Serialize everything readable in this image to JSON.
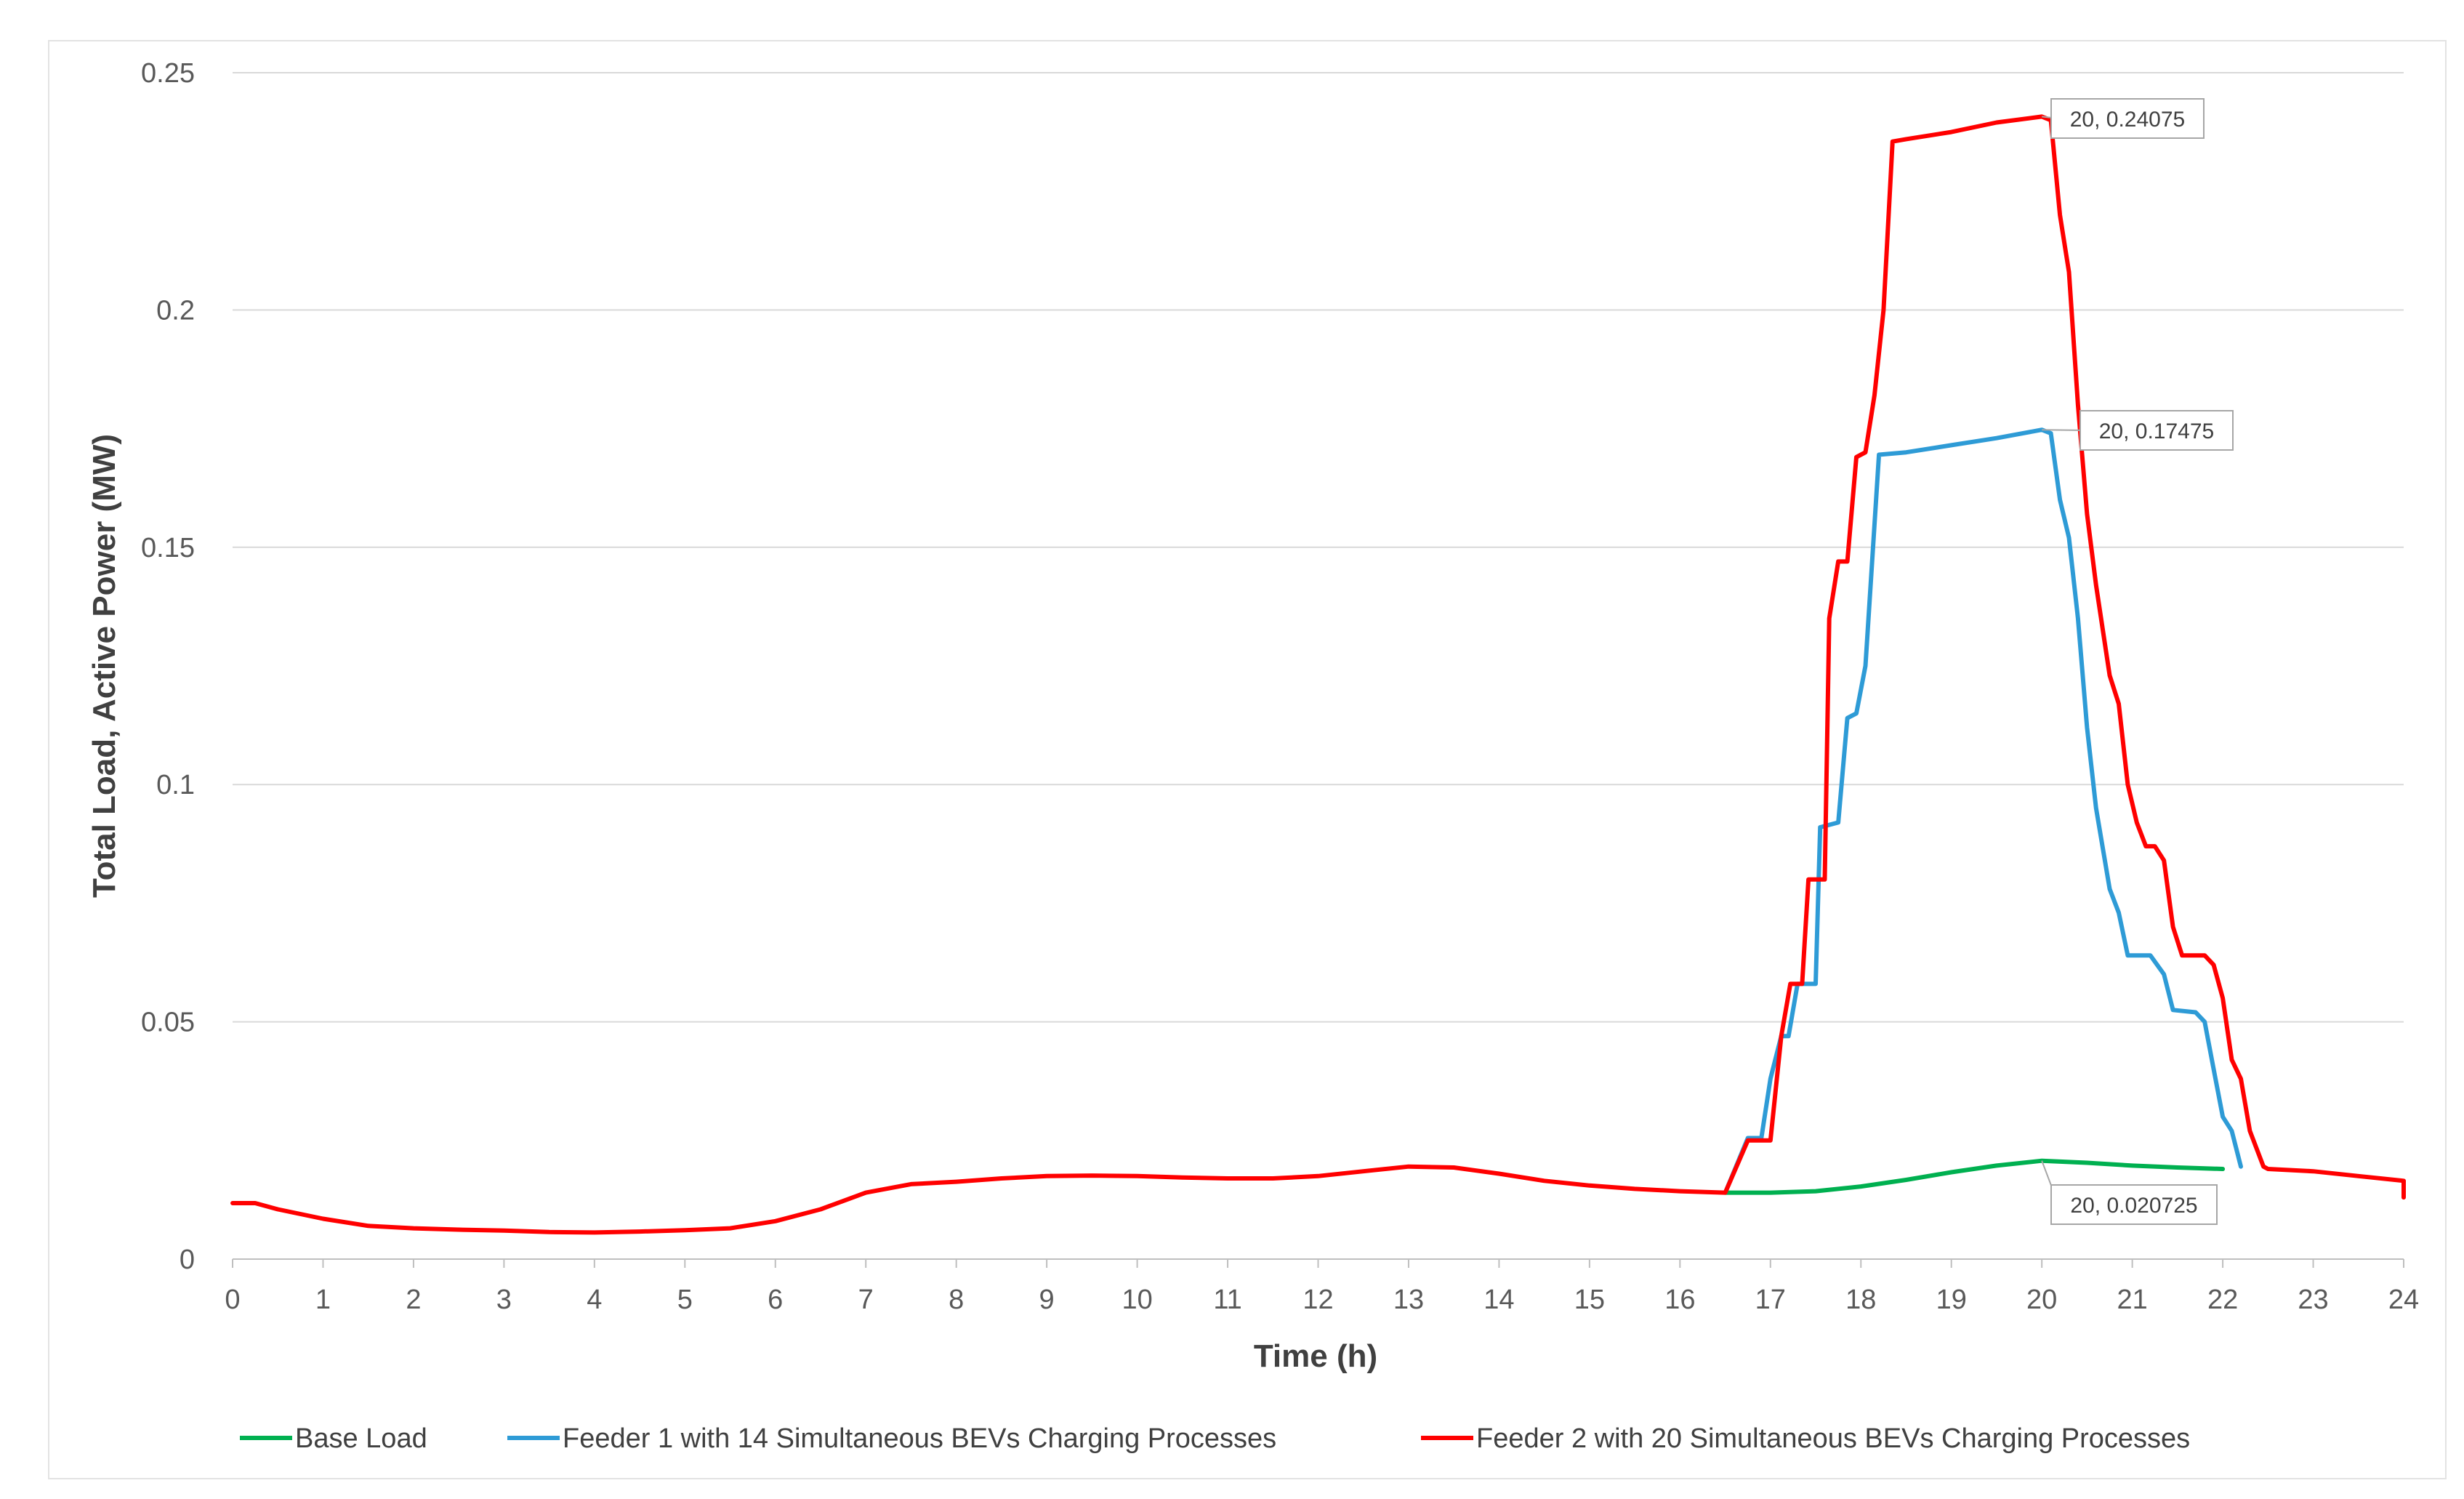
{
  "chart_data": {
    "type": "line",
    "title": "",
    "xlabel": "Time (h)",
    "ylabel": "Total Load, Active Power (MW)",
    "xlim": [
      0,
      24
    ],
    "ylim": [
      0,
      0.25
    ],
    "x_ticks": [
      "0",
      "1",
      "2",
      "3",
      "4",
      "5",
      "6",
      "7",
      "8",
      "9",
      "10",
      "11",
      "12",
      "13",
      "14",
      "15",
      "16",
      "17",
      "18",
      "19",
      "20",
      "21",
      "22",
      "23",
      "24"
    ],
    "y_ticks": [
      "0",
      "0.05",
      "0.1",
      "0.15",
      "0.2",
      "0.25"
    ],
    "grid": "horizontal",
    "legend": "bottom",
    "series": [
      {
        "name": "Base Load",
        "color": "#00b050",
        "points": [
          [
            16.5,
            0.014
          ],
          [
            17,
            0.014
          ],
          [
            17.5,
            0.0143
          ],
          [
            18,
            0.0153
          ],
          [
            18.5,
            0.0167
          ],
          [
            19,
            0.0183
          ],
          [
            19.5,
            0.0197
          ],
          [
            20,
            0.020725
          ],
          [
            20.5,
            0.0203
          ],
          [
            21,
            0.0197
          ],
          [
            21.5,
            0.0193
          ],
          [
            22,
            0.019
          ]
        ]
      },
      {
        "name": "Feeder 1 with 14 Simultaneous BEVs Charging Processes",
        "color": "#2e9bd6",
        "points": [
          [
            16.5,
            0.014
          ],
          [
            16.75,
            0.0255
          ],
          [
            16.9,
            0.0255
          ],
          [
            17.0,
            0.038
          ],
          [
            17.12,
            0.047
          ],
          [
            17.2,
            0.047
          ],
          [
            17.3,
            0.058
          ],
          [
            17.5,
            0.058
          ],
          [
            17.55,
            0.091
          ],
          [
            17.75,
            0.092
          ],
          [
            17.85,
            0.114
          ],
          [
            17.95,
            0.115
          ],
          [
            18.05,
            0.125
          ],
          [
            18.2,
            0.1695
          ],
          [
            18.5,
            0.17
          ],
          [
            19,
            0.1715
          ],
          [
            19.5,
            0.173
          ],
          [
            20,
            0.17475
          ],
          [
            20.1,
            0.174
          ],
          [
            20.2,
            0.16
          ],
          [
            20.3,
            0.152
          ],
          [
            20.4,
            0.135
          ],
          [
            20.5,
            0.112
          ],
          [
            20.6,
            0.095
          ],
          [
            20.75,
            0.078
          ],
          [
            20.85,
            0.073
          ],
          [
            20.95,
            0.064
          ],
          [
            21.2,
            0.064
          ],
          [
            21.35,
            0.06
          ],
          [
            21.45,
            0.0525
          ],
          [
            21.7,
            0.052
          ],
          [
            21.8,
            0.05
          ],
          [
            21.9,
            0.04
          ],
          [
            22.0,
            0.03
          ],
          [
            22.1,
            0.027
          ],
          [
            22.2,
            0.0195
          ]
        ]
      },
      {
        "name": "Feeder 2 with 20 Simultaneous BEVs Charging Processes",
        "color": "#ff0000",
        "points": [
          [
            0,
            0.0118
          ],
          [
            0.25,
            0.0118
          ],
          [
            0.5,
            0.0105
          ],
          [
            1,
            0.0085
          ],
          [
            1.5,
            0.007
          ],
          [
            2,
            0.0065
          ],
          [
            2.5,
            0.0062
          ],
          [
            3,
            0.006
          ],
          [
            3.5,
            0.0057
          ],
          [
            4,
            0.0056
          ],
          [
            4.5,
            0.0058
          ],
          [
            5,
            0.0061
          ],
          [
            5.5,
            0.0065
          ],
          [
            6,
            0.008
          ],
          [
            6.5,
            0.0105
          ],
          [
            7,
            0.014
          ],
          [
            7.5,
            0.0158
          ],
          [
            8,
            0.0163
          ],
          [
            8.5,
            0.017
          ],
          [
            9,
            0.0175
          ],
          [
            9.5,
            0.0176
          ],
          [
            10,
            0.0175
          ],
          [
            10.5,
            0.0172
          ],
          [
            11,
            0.017
          ],
          [
            11.5,
            0.017
          ],
          [
            12,
            0.0175
          ],
          [
            12.5,
            0.0185
          ],
          [
            13,
            0.0195
          ],
          [
            13.5,
            0.0193
          ],
          [
            14,
            0.018
          ],
          [
            14.5,
            0.0165
          ],
          [
            15,
            0.0155
          ],
          [
            15.5,
            0.0148
          ],
          [
            16,
            0.0143
          ],
          [
            16.5,
            0.014
          ],
          [
            16.75,
            0.025
          ],
          [
            17.0,
            0.025
          ],
          [
            17.12,
            0.047
          ],
          [
            17.22,
            0.058
          ],
          [
            17.35,
            0.058
          ],
          [
            17.42,
            0.08
          ],
          [
            17.6,
            0.08
          ],
          [
            17.65,
            0.135
          ],
          [
            17.75,
            0.147
          ],
          [
            17.85,
            0.147
          ],
          [
            17.95,
            0.169
          ],
          [
            18.05,
            0.17
          ],
          [
            18.15,
            0.182
          ],
          [
            18.25,
            0.2
          ],
          [
            18.35,
            0.2355
          ],
          [
            18.5,
            0.236
          ],
          [
            19,
            0.2375
          ],
          [
            19.5,
            0.2395
          ],
          [
            20,
            0.24075
          ],
          [
            20.1,
            0.24
          ],
          [
            20.2,
            0.22
          ],
          [
            20.3,
            0.208
          ],
          [
            20.4,
            0.18
          ],
          [
            20.5,
            0.157
          ],
          [
            20.6,
            0.142
          ],
          [
            20.75,
            0.123
          ],
          [
            20.85,
            0.117
          ],
          [
            20.95,
            0.1
          ],
          [
            21.05,
            0.092
          ],
          [
            21.15,
            0.087
          ],
          [
            21.25,
            0.087
          ],
          [
            21.35,
            0.084
          ],
          [
            21.45,
            0.07
          ],
          [
            21.55,
            0.064
          ],
          [
            21.8,
            0.064
          ],
          [
            21.9,
            0.062
          ],
          [
            22.0,
            0.055
          ],
          [
            22.1,
            0.042
          ],
          [
            22.2,
            0.038
          ],
          [
            22.3,
            0.027
          ],
          [
            22.45,
            0.0195
          ],
          [
            22.5,
            0.019
          ],
          [
            23,
            0.0185
          ],
          [
            23.5,
            0.0175
          ],
          [
            24,
            0.0165
          ],
          [
            24.25,
            0.015
          ],
          [
            24.5,
            0.014
          ],
          [
            24.75,
            0.013
          ],
          [
            24.9,
            0.013
          ]
        ]
      }
    ],
    "annotations": [
      {
        "label": "20, 0.24075",
        "x": 20,
        "y": 0.24075,
        "series": 2
      },
      {
        "label": "20, 0.17475",
        "x": 20,
        "y": 0.17475,
        "series": 1
      },
      {
        "label": "20, 0.020725",
        "x": 20,
        "y": 0.020725,
        "series": 0
      }
    ]
  }
}
